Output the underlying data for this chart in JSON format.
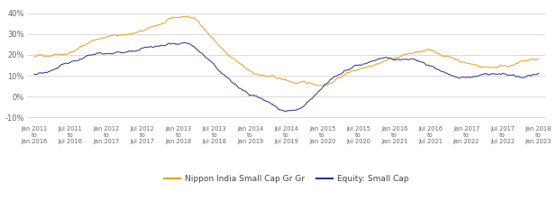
{
  "ylim": [
    -0.13,
    0.44
  ],
  "yticks": [
    -0.1,
    0.0,
    0.1,
    0.2,
    0.3,
    0.4
  ],
  "ytick_labels": [
    "-10%",
    "0%",
    "10%",
    "20%",
    "30%",
    "40%"
  ],
  "xtick_labels": [
    "Jan 2011\nto\nJan 2016",
    "Jul 2011\nto\nJul 2016",
    "Jan 2012\nto\nJan 2017",
    "Jul 2012\nto\nJul 2017",
    "Jan 2013\nto\nJan 2018",
    "Jul 2013\nto\nJul 2018",
    "Jan 2014\nto\nJan 2019",
    "Jul 2014\nto\nJul 2019",
    "Jan 2015\nto\nJan 2020",
    "Jul 2015\nto\nJul 2020",
    "Jan 2016\nto\nJan 2021",
    "Jul 2016\nto\nJul 2021",
    "Jan 2017\nto\nJan 2022",
    "Jul 2017\nto\nJul 2022",
    "Jan 2018\nto\nJan 2023"
  ],
  "nippon_color": "#E8A020",
  "equity_color": "#2E3192",
  "legend_nippon": "Nippon India Small Cap Gr Gr",
  "legend_equity": "Equity: Small Cap",
  "background_color": "#ffffff",
  "grid_color": "#cccccc",
  "nippon_trend": [
    0.19,
    0.195,
    0.2,
    0.215,
    0.22,
    0.23,
    0.245,
    0.265,
    0.285,
    0.3,
    0.305,
    0.31,
    0.315,
    0.32,
    0.325,
    0.33,
    0.34,
    0.355,
    0.365,
    0.375,
    0.38,
    0.385,
    0.37,
    0.34,
    0.3,
    0.26,
    0.22,
    0.18,
    0.15,
    0.12,
    0.105,
    0.095,
    0.085,
    0.075,
    0.065,
    0.055,
    0.045,
    0.04,
    0.035,
    0.035,
    0.04,
    0.06,
    0.08,
    0.1,
    0.115,
    0.13,
    0.15,
    0.165,
    0.18,
    0.19,
    0.2,
    0.21,
    0.215,
    0.218,
    0.215,
    0.205,
    0.195,
    0.185,
    0.175,
    0.165,
    0.155,
    0.148,
    0.145,
    0.148,
    0.155,
    0.162,
    0.168,
    0.175,
    0.178,
    0.18
  ],
  "equity_trend": [
    0.108,
    0.112,
    0.118,
    0.13,
    0.145,
    0.158,
    0.17,
    0.185,
    0.195,
    0.205,
    0.21,
    0.215,
    0.218,
    0.22,
    0.222,
    0.225,
    0.228,
    0.232,
    0.238,
    0.242,
    0.245,
    0.235,
    0.21,
    0.185,
    0.155,
    0.12,
    0.09,
    0.06,
    0.035,
    0.01,
    -0.005,
    -0.02,
    -0.04,
    -0.058,
    -0.065,
    -0.06,
    -0.045,
    -0.02,
    0.01,
    0.04,
    0.065,
    0.09,
    0.11,
    0.125,
    0.135,
    0.145,
    0.152,
    0.158,
    0.162,
    0.162,
    0.158,
    0.152,
    0.145,
    0.135,
    0.12,
    0.105,
    0.092,
    0.082,
    0.08,
    0.082,
    0.088,
    0.092,
    0.098,
    0.1,
    0.098,
    0.095,
    0.098,
    0.105,
    0.112
  ],
  "noise_seed": 42,
  "noise_scale_nippon": 0.012,
  "noise_scale_equity": 0.01
}
